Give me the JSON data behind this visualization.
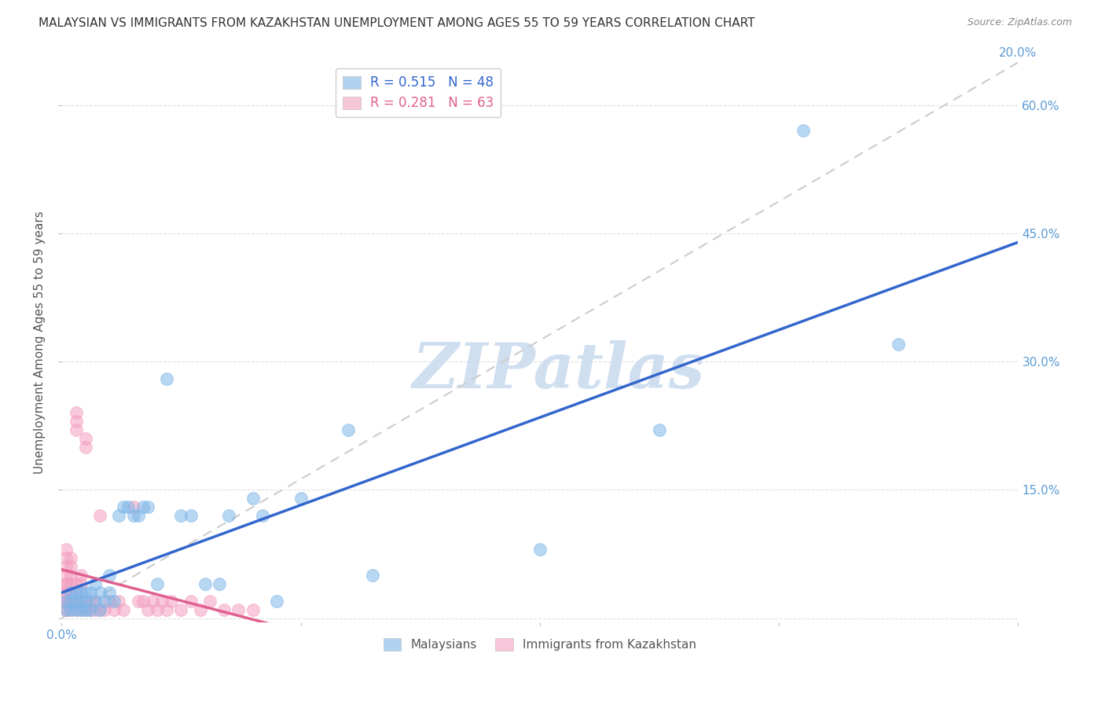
{
  "title": "MALAYSIAN VS IMMIGRANTS FROM KAZAKHSTAN UNEMPLOYMENT AMONG AGES 55 TO 59 YEARS CORRELATION CHART",
  "source": "Source: ZipAtlas.com",
  "ylabel": "Unemployment Among Ages 55 to 59 years",
  "watermark": "ZIPatlas",
  "xmin": 0.0,
  "xmax": 0.2,
  "ymin": -0.005,
  "ymax": 0.65,
  "yticks": [
    0.0,
    0.15,
    0.3,
    0.45,
    0.6
  ],
  "xticks": [
    0.0,
    0.05,
    0.1,
    0.15,
    0.2
  ],
  "blue_R": 0.515,
  "blue_N": 48,
  "pink_R": 0.281,
  "pink_N": 63,
  "blue_color": "#7EB6E8",
  "pink_color": "#F4A0C0",
  "blue_line_color": "#3366CC",
  "pink_line_color": "#E06090",
  "pink_dash_color": "#E8A0B8",
  "dashed_line_color": "#CCCCCC",
  "title_fontsize": 11,
  "source_fontsize": 9,
  "legend_fontsize": 11,
  "ylabel_fontsize": 11,
  "right_tick_color": "#5B9BD5",
  "watermark_color": "#D0DFF0",
  "background_color": "#FFFFFF",
  "grid_color": "#DDDDDD",
  "blue_scatter_x": [
    0.001,
    0.001,
    0.002,
    0.002,
    0.002,
    0.003,
    0.003,
    0.003,
    0.004,
    0.004,
    0.004,
    0.005,
    0.005,
    0.005,
    0.006,
    0.006,
    0.007,
    0.007,
    0.008,
    0.008,
    0.009,
    0.01,
    0.01,
    0.011,
    0.012,
    0.013,
    0.014,
    0.015,
    0.016,
    0.017,
    0.018,
    0.02,
    0.022,
    0.025,
    0.027,
    0.03,
    0.033,
    0.035,
    0.04,
    0.042,
    0.045,
    0.05,
    0.06,
    0.065,
    0.1,
    0.125,
    0.155,
    0.175
  ],
  "blue_scatter_y": [
    0.01,
    0.02,
    0.01,
    0.02,
    0.03,
    0.01,
    0.02,
    0.03,
    0.01,
    0.02,
    0.03,
    0.01,
    0.02,
    0.03,
    0.01,
    0.03,
    0.02,
    0.04,
    0.01,
    0.03,
    0.02,
    0.03,
    0.05,
    0.02,
    0.12,
    0.13,
    0.13,
    0.12,
    0.12,
    0.13,
    0.13,
    0.04,
    0.28,
    0.12,
    0.12,
    0.04,
    0.04,
    0.12,
    0.14,
    0.12,
    0.02,
    0.14,
    0.22,
    0.05,
    0.08,
    0.22,
    0.57,
    0.32
  ],
  "pink_scatter_x": [
    0.001,
    0.001,
    0.001,
    0.001,
    0.001,
    0.001,
    0.001,
    0.001,
    0.001,
    0.001,
    0.001,
    0.001,
    0.001,
    0.002,
    0.002,
    0.002,
    0.002,
    0.002,
    0.002,
    0.002,
    0.002,
    0.003,
    0.003,
    0.003,
    0.003,
    0.003,
    0.003,
    0.003,
    0.004,
    0.004,
    0.004,
    0.004,
    0.005,
    0.005,
    0.005,
    0.005,
    0.006,
    0.006,
    0.007,
    0.007,
    0.008,
    0.008,
    0.009,
    0.01,
    0.011,
    0.012,
    0.013,
    0.015,
    0.016,
    0.017,
    0.018,
    0.019,
    0.02,
    0.021,
    0.022,
    0.023,
    0.025,
    0.027,
    0.029,
    0.031,
    0.034,
    0.037,
    0.04
  ],
  "pink_scatter_y": [
    0.01,
    0.02,
    0.01,
    0.02,
    0.03,
    0.04,
    0.05,
    0.06,
    0.07,
    0.08,
    0.02,
    0.03,
    0.04,
    0.01,
    0.02,
    0.03,
    0.04,
    0.05,
    0.06,
    0.07,
    0.02,
    0.01,
    0.02,
    0.03,
    0.04,
    0.22,
    0.23,
    0.24,
    0.01,
    0.02,
    0.04,
    0.05,
    0.01,
    0.02,
    0.2,
    0.21,
    0.01,
    0.02,
    0.01,
    0.02,
    0.01,
    0.12,
    0.01,
    0.02,
    0.01,
    0.02,
    0.01,
    0.13,
    0.02,
    0.02,
    0.01,
    0.02,
    0.01,
    0.02,
    0.01,
    0.02,
    0.01,
    0.02,
    0.01,
    0.02,
    0.01,
    0.01,
    0.01
  ]
}
